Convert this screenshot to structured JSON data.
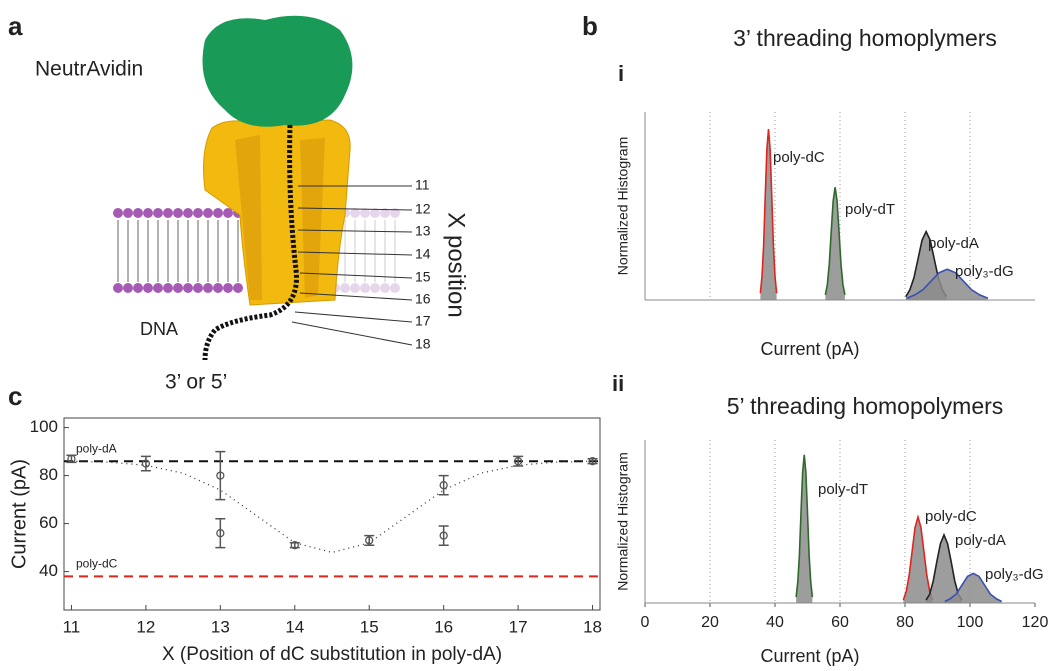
{
  "panel_labels": [
    "a",
    "b",
    "c"
  ],
  "diagram": {
    "protein": "NeutrAvidin",
    "strand": "DNA",
    "end": "3’ or 5’",
    "axis_label": "X position",
    "positions": [
      "11",
      "12",
      "13",
      "14",
      "15",
      "16",
      "17",
      "18"
    ]
  },
  "chart_data": [
    {
      "type": "line",
      "subpanel": "i",
      "title": "3’  threading homoplymers",
      "xlabel": "Current (pA)",
      "ylabel": "Normalized Histogram",
      "xlim": [
        0,
        120
      ],
      "ylim": [
        0,
        1.1
      ],
      "xticks": [
        0,
        20,
        40,
        60,
        80,
        100,
        120
      ],
      "show_xtick_labels": false,
      "grid": "x",
      "fill": "#8c8c8c",
      "series": [
        {
          "name": "poly-dC",
          "color": "#e3241c",
          "x": [
            35.5,
            36,
            36.5,
            37,
            37.5,
            38,
            38.5,
            39,
            39.5,
            40,
            40.5
          ],
          "values": [
            0.04,
            0.14,
            0.32,
            0.61,
            0.88,
            1,
            0.88,
            0.61,
            0.32,
            0.14,
            0.04
          ]
        },
        {
          "name": "poly-dT",
          "color": "#2d6a2a",
          "x": [
            55.5,
            56.1,
            56.7,
            57.3,
            57.9,
            58.5,
            59.1,
            59.7,
            60.3,
            60.9,
            61.5
          ],
          "values": [
            0.03,
            0.09,
            0.21,
            0.4,
            0.58,
            0.66,
            0.58,
            0.4,
            0.21,
            0.09,
            0.03
          ]
        },
        {
          "name": "poly-dA",
          "color": "#222222",
          "x": [
            80.25,
            81.5,
            82.75,
            84,
            85.25,
            86.5,
            87.75,
            89,
            90.25,
            91.5,
            92.75
          ],
          "values": [
            0.02,
            0.06,
            0.13,
            0.24,
            0.35,
            0.4,
            0.35,
            0.24,
            0.13,
            0.06,
            0.02
          ]
        },
        {
          "name": "poly₃-dG",
          "color": "#3a4fb3",
          "x": [
            80.5,
            83,
            85.5,
            88,
            90.5,
            93,
            95.5,
            98,
            100.5,
            103,
            105.5
          ],
          "values": [
            0.01,
            0.03,
            0.06,
            0.11,
            0.16,
            0.18,
            0.16,
            0.11,
            0.06,
            0.03,
            0.01
          ]
        }
      ]
    },
    {
      "type": "line",
      "subpanel": "ii",
      "title": "5’  threading homopolymers",
      "xlabel": "Current (pA)",
      "ylabel": "Normalized Histogram",
      "xlim": [
        0,
        120
      ],
      "ylim": [
        0,
        1.1
      ],
      "xticks": [
        0,
        20,
        40,
        60,
        80,
        100,
        120
      ],
      "show_xtick_labels": true,
      "grid": "x",
      "fill": "#8c8c8c",
      "series": [
        {
          "name": "poly-dT",
          "color": "#2d6a2a",
          "x": [
            46.5,
            47,
            47.5,
            48,
            48.5,
            49,
            49.5,
            50,
            50.5,
            51,
            51.5
          ],
          "values": [
            0.04,
            0.14,
            0.32,
            0.61,
            0.88,
            1,
            0.88,
            0.61,
            0.32,
            0.14,
            0.04
          ]
        },
        {
          "name": "poly-dC",
          "color": "#e3241c",
          "x": [
            79.5,
            80.4,
            81.3,
            82.2,
            83.1,
            84,
            84.9,
            85.8,
            86.7,
            87.6,
            88.5
          ],
          "values": [
            0.02,
            0.08,
            0.19,
            0.35,
            0.51,
            0.58,
            0.51,
            0.35,
            0.19,
            0.08,
            0.02
          ]
        },
        {
          "name": "poly-dA",
          "color": "#222222",
          "x": [
            86.5,
            87.6,
            88.7,
            89.8,
            90.9,
            92,
            93.1,
            94.2,
            95.3,
            96.4,
            97.5
          ],
          "values": [
            0.02,
            0.06,
            0.15,
            0.28,
            0.4,
            0.46,
            0.4,
            0.28,
            0.15,
            0.06,
            0.02
          ]
        },
        {
          "name": "poly₃-dG",
          "color": "#3a4fb3",
          "x": [
            92.25,
            94,
            95.75,
            97.5,
            99.25,
            101,
            102.75,
            104.5,
            106.25,
            108,
            109.75
          ],
          "values": [
            0.01,
            0.03,
            0.06,
            0.12,
            0.18,
            0.2,
            0.18,
            0.12,
            0.06,
            0.03,
            0.01
          ]
        }
      ]
    },
    {
      "type": "scatter",
      "xlabel": "X (Position of dC substitution in poly-dA)",
      "ylabel": "Current (pA)",
      "xlim": [
        10.9,
        18.1
      ],
      "ylim": [
        24,
        104
      ],
      "xticks": [
        11,
        12,
        13,
        14,
        15,
        16,
        17,
        18
      ],
      "yticks": [
        40,
        60,
        80,
        100
      ],
      "color": "#555555",
      "x": [
        11,
        12,
        13,
        13,
        14,
        15,
        16,
        16,
        17,
        18
      ],
      "values": [
        87,
        85,
        80,
        56,
        51,
        53,
        76,
        55,
        86,
        86
      ],
      "errors": [
        1.5,
        3,
        10,
        6,
        1,
        2,
        4,
        4,
        2,
        1
      ],
      "fit": {
        "x": [
          11,
          11.5,
          12,
          12.5,
          13,
          13.5,
          14,
          14.5,
          15,
          15.5,
          16,
          16.5,
          17,
          17.5,
          18
        ],
        "values": [
          86,
          85.6,
          84.3,
          81,
          74,
          63,
          52,
          48,
          52,
          63,
          74,
          81,
          84.3,
          85.6,
          86
        ]
      },
      "reference_lines": [
        {
          "name": "poly-dA",
          "value": 86,
          "color": "#111111"
        },
        {
          "name": "poly-dC",
          "value": 38,
          "color": "#e3241c"
        }
      ]
    }
  ]
}
